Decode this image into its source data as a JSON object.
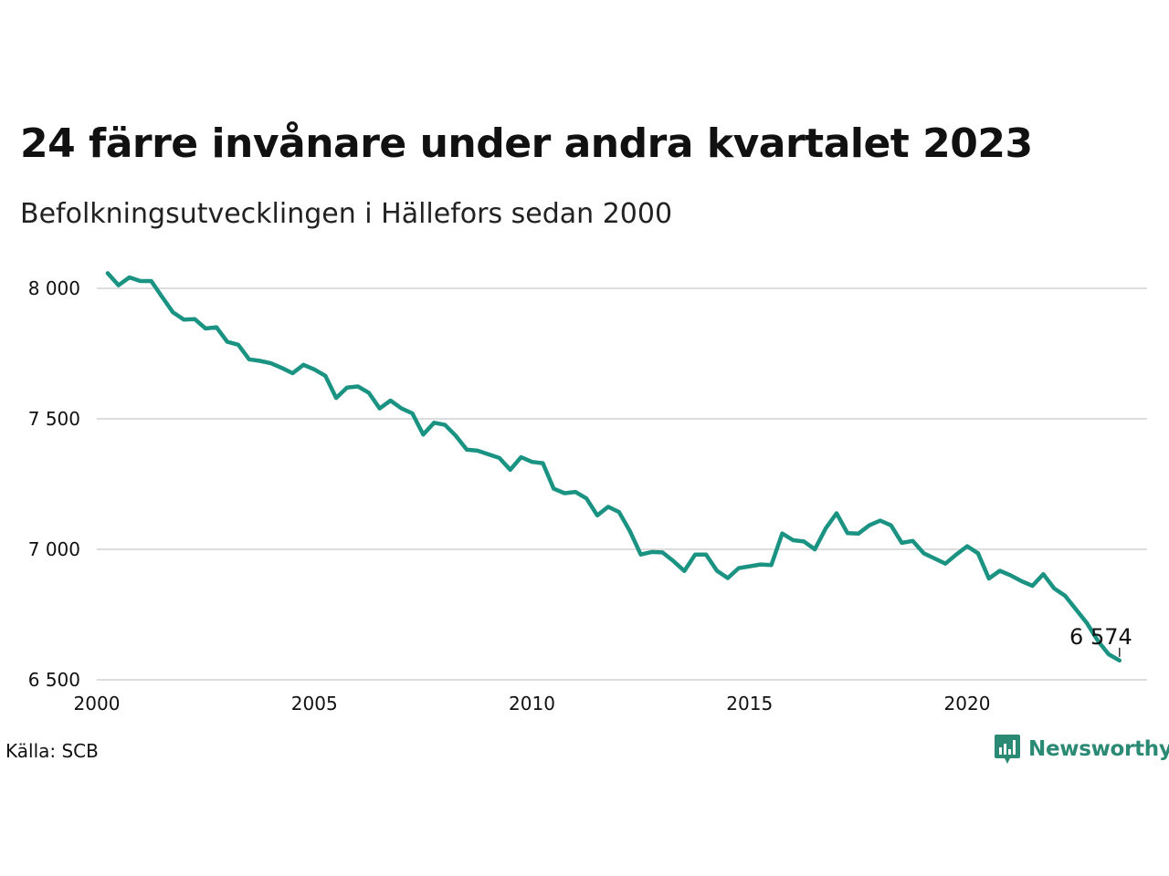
{
  "header": {
    "title": "24 färre invånare under andra kvartalet 2023",
    "subtitle": "Befolkningsutvecklingen i Hällefors sedan 2000"
  },
  "footer": {
    "source": "Källa: SCB",
    "brand": "Newsworthy"
  },
  "colors": {
    "line": "#1b9383",
    "grid": "#dddddd",
    "brand": "#2a8a74"
  },
  "chart_data": {
    "type": "line",
    "title": "24 färre invånare under andra kvartalet 2023",
    "subtitle": "Befolkningsutvecklingen i Hällefors sedan 2000",
    "xlabel": "",
    "ylabel": "",
    "x_start": 2000.25,
    "x_step": 0.25,
    "xlim": [
      2000,
      2024.25
    ],
    "ylim": [
      6500,
      8060
    ],
    "y_ticks": [
      6500,
      7000,
      7500,
      8000
    ],
    "y_tick_labels": [
      "6 500",
      "7 000",
      "7 500",
      "8 000"
    ],
    "x_ticks": [
      2000,
      2005,
      2010,
      2015,
      2020
    ],
    "x_tick_labels": [
      "2000",
      "2005",
      "2010",
      "2015",
      "2020"
    ],
    "grid": "horizontal",
    "end_label": "6 574",
    "series": [
      {
        "values": [
          8058,
          8012,
          8042,
          8028,
          8028,
          7967,
          7908,
          7880,
          7882,
          7846,
          7851,
          7795,
          7784,
          7728,
          7722,
          7713,
          7695,
          7675,
          7707,
          7689,
          7665,
          7580,
          7620,
          7624,
          7600,
          7540,
          7570,
          7540,
          7521,
          7440,
          7485,
          7477,
          7435,
          7382,
          7378,
          7364,
          7350,
          7305,
          7353,
          7335,
          7330,
          7232,
          7215,
          7220,
          7195,
          7130,
          7163,
          7143,
          7070,
          6980,
          6990,
          6988,
          6955,
          6917,
          6980,
          6980,
          6918,
          6890,
          6928,
          6935,
          6942,
          6940,
          7061,
          7035,
          7030,
          7000,
          7080,
          7138,
          7062,
          7060,
          7092,
          7110,
          7092,
          7025,
          7032,
          6985,
          6965,
          6945,
          6980,
          7012,
          6985,
          6888,
          6918,
          6900,
          6878,
          6860,
          6905,
          6850,
          6822,
          6770,
          6718,
          6650,
          6598,
          6574
        ]
      }
    ]
  }
}
